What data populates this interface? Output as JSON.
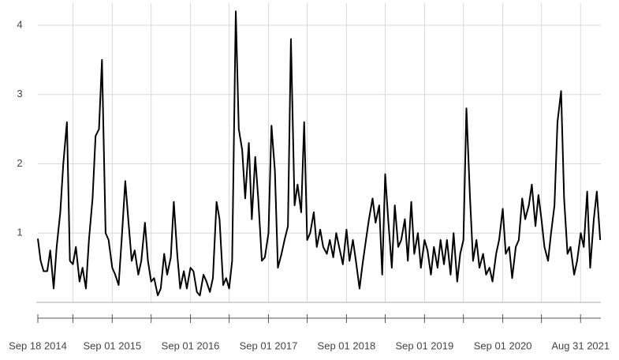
{
  "chart_data": {
    "type": "line",
    "x": [
      "2014-09-18",
      "2014-10-01",
      "2014-10-15",
      "2014-11-01",
      "2014-11-15",
      "2014-12-01",
      "2014-12-15",
      "2015-01-01",
      "2015-01-15",
      "2015-02-01",
      "2015-02-15",
      "2015-03-01",
      "2015-03-15",
      "2015-04-01",
      "2015-04-15",
      "2015-05-01",
      "2015-05-15",
      "2015-06-01",
      "2015-06-15",
      "2015-07-01",
      "2015-07-15",
      "2015-08-01",
      "2015-08-15",
      "2015-09-01",
      "2015-09-15",
      "2015-10-01",
      "2015-10-15",
      "2015-11-01",
      "2015-11-15",
      "2015-12-01",
      "2015-12-15",
      "2016-01-01",
      "2016-01-15",
      "2016-02-01",
      "2016-02-15",
      "2016-03-01",
      "2016-03-15",
      "2016-04-01",
      "2016-04-15",
      "2016-05-01",
      "2016-05-15",
      "2016-06-01",
      "2016-06-15",
      "2016-07-01",
      "2016-07-15",
      "2016-08-01",
      "2016-08-15",
      "2016-09-01",
      "2016-09-15",
      "2016-10-01",
      "2016-10-15",
      "2016-11-01",
      "2016-11-15",
      "2016-12-01",
      "2016-12-15",
      "2017-01-01",
      "2017-01-15",
      "2017-02-01",
      "2017-02-15",
      "2017-03-01",
      "2017-03-15",
      "2017-04-01",
      "2017-04-15",
      "2017-05-01",
      "2017-05-15",
      "2017-06-01",
      "2017-06-15",
      "2017-07-01",
      "2017-07-15",
      "2017-08-01",
      "2017-08-15",
      "2017-09-01",
      "2017-09-15",
      "2017-10-01",
      "2017-10-15",
      "2017-11-01",
      "2017-11-15",
      "2017-12-01",
      "2017-12-15",
      "2018-01-01",
      "2018-01-15",
      "2018-02-01",
      "2018-02-15",
      "2018-03-01",
      "2018-03-15",
      "2018-04-01",
      "2018-04-15",
      "2018-05-01",
      "2018-05-15",
      "2018-06-01",
      "2018-06-15",
      "2018-07-01",
      "2018-07-15",
      "2018-08-01",
      "2018-08-15",
      "2018-09-01",
      "2018-09-15",
      "2018-10-01",
      "2018-10-15",
      "2018-11-01",
      "2018-11-15",
      "2018-12-01",
      "2018-12-15",
      "2019-01-01",
      "2019-01-15",
      "2019-02-01",
      "2019-02-15",
      "2019-03-01",
      "2019-03-15",
      "2019-04-01",
      "2019-04-15",
      "2019-05-01",
      "2019-05-15",
      "2019-06-01",
      "2019-06-15",
      "2019-07-01",
      "2019-07-15",
      "2019-08-01",
      "2019-08-15",
      "2019-09-01",
      "2019-09-15",
      "2019-10-01",
      "2019-10-15",
      "2019-11-01",
      "2019-11-15",
      "2019-12-01",
      "2019-12-15",
      "2020-01-01",
      "2020-01-15",
      "2020-02-01",
      "2020-02-15",
      "2020-03-01",
      "2020-03-15",
      "2020-04-01",
      "2020-04-15",
      "2020-05-01",
      "2020-05-15",
      "2020-06-01",
      "2020-06-15",
      "2020-07-01",
      "2020-07-15",
      "2020-08-01",
      "2020-08-15",
      "2020-09-01",
      "2020-09-15",
      "2020-10-01",
      "2020-10-15",
      "2020-11-01",
      "2020-11-15",
      "2020-12-01",
      "2020-12-15",
      "2021-01-01",
      "2021-01-15",
      "2021-02-01",
      "2021-02-15",
      "2021-03-01",
      "2021-03-15",
      "2021-04-01",
      "2021-04-15",
      "2021-05-01",
      "2021-05-15",
      "2021-06-01",
      "2021-06-15",
      "2021-07-01",
      "2021-07-15",
      "2021-08-01",
      "2021-08-15",
      "2021-09-01",
      "2021-09-15",
      "2021-10-01",
      "2021-10-15",
      "2021-11-01",
      "2021-11-15",
      "2021-12-01"
    ],
    "series": [
      {
        "color": "#000000",
        "values": [
          0.92,
          0.6,
          0.45,
          0.45,
          0.75,
          0.2,
          0.8,
          1.3,
          2.0,
          2.6,
          0.6,
          0.55,
          0.8,
          0.3,
          0.5,
          0.2,
          0.9,
          1.5,
          2.4,
          2.5,
          3.5,
          1.0,
          0.9,
          0.5,
          0.4,
          0.25,
          0.9,
          1.75,
          1.2,
          0.6,
          0.75,
          0.4,
          0.6,
          1.15,
          0.6,
          0.3,
          0.35,
          0.1,
          0.2,
          0.7,
          0.4,
          0.65,
          1.45,
          0.7,
          0.2,
          0.45,
          0.2,
          0.5,
          0.45,
          0.15,
          0.1,
          0.4,
          0.3,
          0.15,
          0.35,
          1.45,
          1.2,
          0.25,
          0.35,
          0.2,
          0.6,
          4.2,
          2.5,
          2.2,
          1.5,
          2.3,
          1.2,
          2.1,
          1.5,
          0.6,
          0.65,
          1.0,
          2.55,
          1.9,
          0.5,
          0.7,
          0.9,
          1.1,
          3.8,
          1.4,
          1.7,
          1.3,
          2.6,
          0.9,
          1.0,
          1.3,
          0.8,
          1.05,
          0.8,
          0.7,
          0.9,
          0.65,
          1.0,
          0.75,
          0.55,
          1.05,
          0.6,
          0.9,
          0.6,
          0.2,
          0.55,
          0.9,
          1.2,
          1.5,
          1.15,
          1.4,
          0.4,
          1.85,
          1.2,
          0.5,
          1.4,
          0.8,
          0.9,
          1.2,
          0.6,
          1.45,
          0.7,
          1.0,
          0.5,
          0.9,
          0.75,
          0.4,
          0.8,
          0.5,
          0.9,
          0.55,
          0.9,
          0.4,
          1.0,
          0.3,
          0.7,
          0.9,
          2.8,
          1.5,
          0.6,
          0.9,
          0.5,
          0.7,
          0.4,
          0.5,
          0.3,
          0.7,
          0.9,
          1.35,
          0.7,
          0.8,
          0.35,
          0.8,
          0.9,
          1.5,
          1.2,
          1.4,
          1.7,
          1.1,
          1.55,
          1.2,
          0.8,
          0.6,
          1.0,
          1.4,
          2.6,
          3.05,
          1.5,
          0.7,
          0.8,
          0.4,
          0.6,
          1.0,
          0.8,
          1.6,
          0.5,
          1.2,
          1.6,
          0.9
        ]
      }
    ],
    "xlim": [
      "2014-09-18",
      "2021-12-04"
    ],
    "xticks": [
      {
        "value": "2014-09-18",
        "label": "Sep 18 2014"
      },
      {
        "value": "2015-09-01",
        "label": "Sep 01 2015"
      },
      {
        "value": "2016-09-01",
        "label": "Sep 01 2016"
      },
      {
        "value": "2017-09-01",
        "label": "Sep 01 2017"
      },
      {
        "value": "2018-09-01",
        "label": "Sep 01 2018"
      },
      {
        "value": "2019-09-01",
        "label": "Sep 01 2019"
      },
      {
        "value": "2020-09-01",
        "label": "Sep 01 2020"
      },
      {
        "value": "2021-08-31",
        "label": "Aug 31 2021"
      }
    ],
    "xminor": [
      "2015-03-01",
      "2016-03-01",
      "2017-03-01",
      "2018-03-01",
      "2019-03-01",
      "2020-03-01",
      "2021-03-01"
    ],
    "ylim": [
      0,
      4.25
    ],
    "yticks": [
      1,
      2,
      3,
      4
    ],
    "grid": true
  }
}
